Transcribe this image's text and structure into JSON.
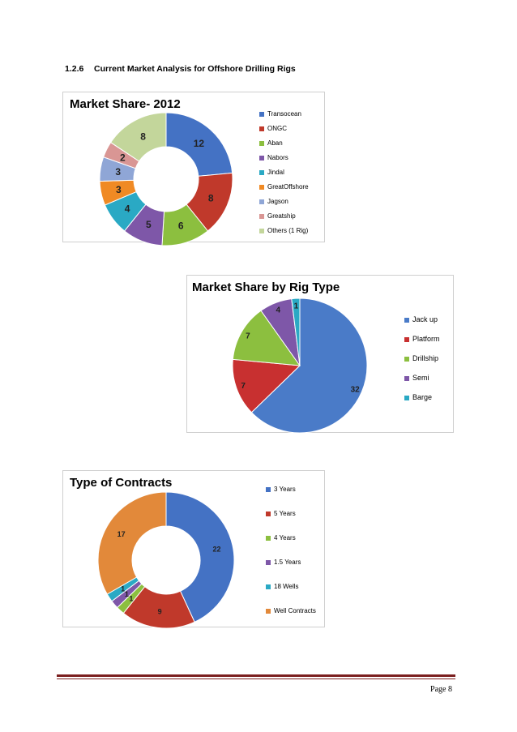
{
  "section": {
    "number": "1.2.6",
    "title": "Current Market Analysis for Offshore Drilling Rigs"
  },
  "page": {
    "label": "Page 8"
  },
  "chart_data": [
    {
      "type": "donut",
      "title": "Market Share- 2012",
      "legend_position": "right",
      "series": [
        {
          "name": "Transocean",
          "value": 12,
          "color": "#4472c4"
        },
        {
          "name": "ONGC",
          "value": 8,
          "color": "#c0392b"
        },
        {
          "name": "Aban",
          "value": 6,
          "color": "#8cbf3f"
        },
        {
          "name": "Nabors",
          "value": 5,
          "color": "#7e57a8"
        },
        {
          "name": "Jindal",
          "value": 4,
          "color": "#2aa9c4"
        },
        {
          "name": "GreatOffshore",
          "value": 3,
          "color": "#f08a24"
        },
        {
          "name": "Jagson",
          "value": 3,
          "color": "#8fa6d6"
        },
        {
          "name": "Greatship",
          "value": 2,
          "color": "#d99694"
        },
        {
          "name": "Others (1 Rig)",
          "value": 8,
          "color": "#c3d69b"
        }
      ]
    },
    {
      "type": "pie",
      "title": "Market Share by Rig Type",
      "legend_position": "right",
      "series": [
        {
          "name": "Jack up",
          "value": 32,
          "color": "#4a7bc8"
        },
        {
          "name": "Platform",
          "value": 7,
          "color": "#c83030"
        },
        {
          "name": "Drillship",
          "value": 7,
          "color": "#8cbf3f"
        },
        {
          "name": "Semi",
          "value": 4,
          "color": "#7e57a8"
        },
        {
          "name": "Barge",
          "value": 1,
          "color": "#2aa9c4"
        }
      ]
    },
    {
      "type": "donut",
      "title": "Type of Contracts",
      "legend_position": "right",
      "series": [
        {
          "name": "3 Years",
          "value": 22,
          "color": "#4472c4"
        },
        {
          "name": "5 Years",
          "value": 9,
          "color": "#c0392b"
        },
        {
          "name": "4 Years",
          "value": 1,
          "color": "#8cbf3f"
        },
        {
          "name": "1.5 Years",
          "value": 1,
          "color": "#7e57a8"
        },
        {
          "name": "18 Wells",
          "value": 1,
          "color": "#2aa9c4"
        },
        {
          "name": "Well Contracts",
          "value": 17,
          "color": "#e2893a"
        }
      ]
    }
  ]
}
